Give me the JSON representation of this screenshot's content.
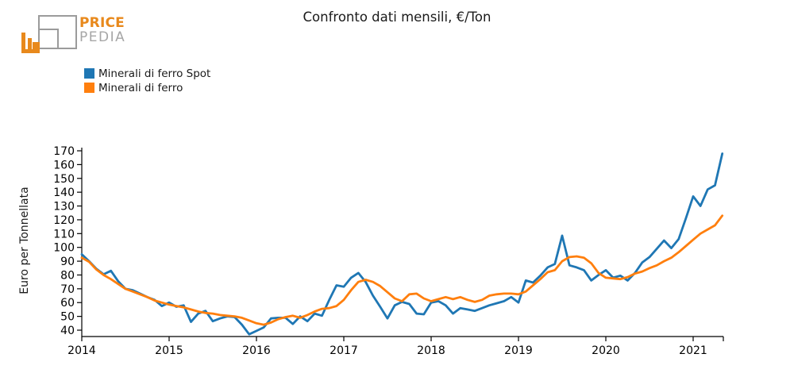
{
  "logo": {
    "brand_top": "PRICE",
    "brand_bottom": "PEDIA",
    "orange": "#e8891c",
    "gray": "#9b9b9b"
  },
  "title": "Confronto dati mensili, €/Ton",
  "y_axis_label": "Euro per Tonnellata",
  "legend": [
    {
      "label": "Minerali di ferro Spot",
      "color": "#1f77b4"
    },
    {
      "label": "Minerali di ferro",
      "color": "#ff7f0e"
    }
  ],
  "chart_data": {
    "type": "line",
    "x_start": "2014-01",
    "x_freq": "monthly",
    "x_tick_labels": [
      "2014",
      "2015",
      "2016",
      "2017",
      "2018",
      "2019",
      "2020",
      "2021"
    ],
    "y_ticks": [
      40,
      50,
      60,
      70,
      80,
      90,
      100,
      110,
      120,
      130,
      140,
      150,
      160,
      170
    ],
    "ylim": [
      35,
      172
    ],
    "grid": false,
    "legend_position": "upper-left-outside",
    "series": [
      {
        "name": "Minerali di ferro Spot",
        "color": "#1f77b4",
        "values": [
          95,
          90,
          84.5,
          80.5,
          83,
          75.5,
          70,
          69,
          66.5,
          64,
          62,
          57.5,
          60,
          57,
          58,
          46,
          52,
          54,
          46.5,
          48.5,
          50,
          49.5,
          44,
          37,
          39.5,
          42,
          48.5,
          49,
          49,
          44.5,
          50,
          46.5,
          52,
          50.5,
          62,
          72.5,
          71.5,
          78,
          81.5,
          75,
          65,
          57,
          48.5,
          58,
          60.5,
          59,
          52,
          51.5,
          60,
          61,
          58,
          52,
          56,
          55,
          54,
          56,
          58,
          59.5,
          61,
          64,
          60,
          76,
          74.5,
          79.5,
          85.5,
          88,
          108.5,
          87,
          85.5,
          83.5,
          76,
          80,
          83.5,
          78,
          79.5,
          76,
          81.5,
          89,
          93,
          99,
          105,
          99.5,
          106,
          121,
          137,
          130,
          142,
          145,
          168
        ]
      },
      {
        "name": "Minerali di ferro",
        "color": "#ff7f0e",
        "values": [
          92.5,
          89.5,
          84,
          80,
          77,
          73.5,
          70,
          68,
          66,
          64,
          61.5,
          60,
          58.5,
          57.5,
          56.5,
          55,
          53.5,
          52.5,
          52,
          51,
          50.5,
          50,
          49,
          47,
          45,
          44,
          45.5,
          48,
          49.5,
          50.5,
          49,
          51,
          53.5,
          55.5,
          56,
          57.5,
          62,
          69,
          75,
          76.5,
          75,
          72,
          67.5,
          63,
          61,
          66,
          66.5,
          63,
          61,
          62.5,
          64,
          62.5,
          64,
          62,
          60.5,
          62,
          65,
          66,
          66.5,
          66.5,
          66,
          68,
          72.5,
          77,
          82,
          83.5,
          90,
          93,
          93.5,
          92.5,
          88.5,
          81.5,
          78,
          77.5,
          77,
          78.5,
          81,
          82.5,
          85,
          87,
          90,
          92.5,
          96.5,
          101,
          105.5,
          110,
          113,
          116,
          123
        ]
      }
    ]
  }
}
